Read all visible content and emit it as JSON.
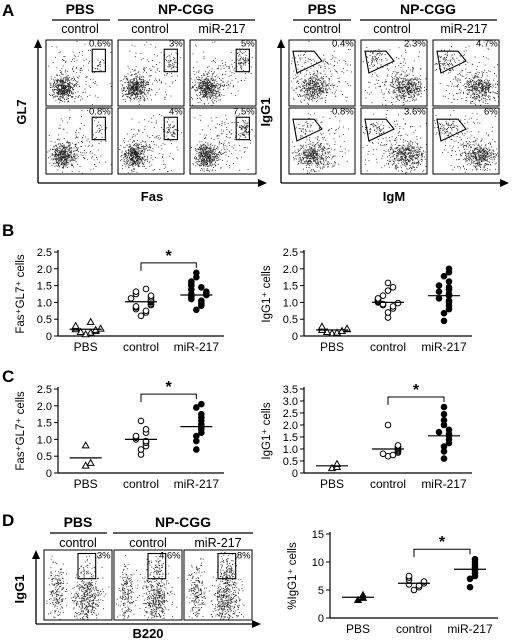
{
  "panels": [
    "A",
    "B",
    "C",
    "D"
  ],
  "flow_A": {
    "group_pbs": "PBS",
    "group_np": "NP-CGG",
    "sub_control": "control",
    "sub_mir": "miR-217",
    "left_xlabel": "Fas",
    "left_ylabel": "GL7",
    "right_xlabel": "IgM",
    "right_ylabel": "IgG1",
    "left_pct": [
      [
        "0.6%",
        "3%",
        "5%"
      ],
      [
        "0.8%",
        "4%",
        "7.5%"
      ]
    ],
    "right_pct": [
      [
        "0.4%",
        "2.3%",
        "4.7%"
      ],
      [
        "0.8%",
        "3.6%",
        "6%"
      ]
    ]
  },
  "flow_D": {
    "group_pbs": "PBS",
    "group_np": "NP-CGG",
    "sub": [
      "control",
      "control",
      "miR-217"
    ],
    "pct": [
      "3%",
      "4.6%",
      "8%"
    ],
    "xlabel": "B220",
    "ylabel": "IgG1"
  },
  "chart_data": [
    {
      "type": "scatter",
      "panel": "B",
      "ylabel": "Fas⁺GL7⁺ cells",
      "categories": [
        "PBS",
        "control",
        "miR-217"
      ],
      "ylim": [
        0,
        2.5
      ],
      "yticks": [
        "0",
        "0.5",
        "1.0",
        "1.5",
        "2.0",
        "2.5"
      ],
      "markers": [
        "triangle-open",
        "circle-open",
        "circle-filled"
      ],
      "series": [
        {
          "values": [
            0.05,
            0.1,
            0.12,
            0.15,
            0.18,
            0.2,
            0.22,
            0.25,
            0.3,
            0.42
          ]
        },
        {
          "values": [
            0.6,
            0.7,
            0.75,
            0.8,
            0.85,
            0.88,
            0.92,
            0.95,
            1.0,
            1.02,
            1.05,
            1.08,
            1.12,
            1.15,
            1.2,
            1.25,
            1.32,
            1.4
          ]
        },
        {
          "values": [
            0.78,
            0.9,
            0.98,
            1.05,
            1.1,
            1.12,
            1.18,
            1.22,
            1.25,
            1.28,
            1.32,
            1.38,
            1.45,
            1.5,
            1.55,
            1.62,
            1.75,
            1.88
          ]
        }
      ],
      "means": [
        0.2,
        1.02,
        1.22
      ],
      "significance": {
        "between": [
          1,
          2
        ],
        "label": "*"
      }
    },
    {
      "type": "scatter",
      "panel": "B",
      "ylabel": "IgG1⁺ cells",
      "categories": [
        "PBS",
        "control",
        "miR-217"
      ],
      "ylim": [
        0,
        2.5
      ],
      "yticks": [
        "0",
        "0.5",
        "1.0",
        "1.5",
        "2.0",
        "2.5"
      ],
      "markers": [
        "triangle-open",
        "circle-open",
        "circle-filled"
      ],
      "series": [
        {
          "values": [
            0.08,
            0.1,
            0.12,
            0.15,
            0.18,
            0.2,
            0.22,
            0.25,
            0.28
          ]
        },
        {
          "values": [
            0.55,
            0.7,
            0.82,
            0.88,
            0.92,
            0.95,
            0.98,
            1.0,
            1.02,
            1.05,
            1.08,
            1.12,
            1.2,
            1.35,
            1.45,
            1.58
          ]
        },
        {
          "values": [
            0.45,
            0.68,
            0.8,
            0.9,
            1.0,
            1.05,
            1.12,
            1.2,
            1.25,
            1.32,
            1.38,
            1.45,
            1.5,
            1.62,
            1.78,
            1.9,
            2.0
          ]
        }
      ],
      "means": [
        0.18,
        1.0,
        1.2
      ]
    },
    {
      "type": "scatter",
      "panel": "C",
      "ylabel": "Fas⁺GL7⁺ cells",
      "categories": [
        "PBS",
        "control",
        "miR-217"
      ],
      "ylim": [
        0,
        2.5
      ],
      "yticks": [
        "0",
        "0.5",
        "1.0",
        "1.5",
        "2.0",
        "2.5"
      ],
      "markers": [
        "triangle-open",
        "circle-open",
        "circle-filled"
      ],
      "series": [
        {
          "values": [
            0.22,
            0.3,
            0.82
          ]
        },
        {
          "values": [
            0.55,
            0.7,
            0.8,
            0.9,
            0.95,
            1.0,
            1.05,
            1.1,
            1.2,
            1.3,
            1.55
          ]
        },
        {
          "values": [
            0.7,
            0.95,
            1.1,
            1.2,
            1.3,
            1.38,
            1.45,
            1.55,
            1.65,
            1.75,
            1.95,
            2.05
          ]
        }
      ],
      "means": [
        0.45,
        1.0,
        1.38
      ],
      "significance": {
        "between": [
          1,
          2
        ],
        "label": "*"
      }
    },
    {
      "type": "scatter",
      "panel": "C",
      "ylabel": "IgG1⁺ cells",
      "categories": [
        "PBS",
        "control",
        "miR-217"
      ],
      "ylim": [
        0,
        3.5
      ],
      "yticks": [
        "0",
        "0.5",
        "1.0",
        "1.5",
        "2.0",
        "2.5",
        "3.0",
        "3.5"
      ],
      "markers": [
        "triangle-open",
        "circle-open",
        "circle-filled"
      ],
      "series": [
        {
          "values": [
            0.2,
            0.25,
            0.38
          ]
        },
        {
          "values": [
            0.7,
            0.75,
            0.8,
            0.85,
            0.9,
            0.95,
            1.0,
            1.05,
            1.1,
            1.15,
            2.0
          ]
        },
        {
          "values": [
            0.6,
            0.9,
            1.1,
            1.25,
            1.4,
            1.55,
            1.62,
            1.7,
            1.8,
            2.0,
            2.2,
            2.45,
            2.75
          ]
        }
      ],
      "means": [
        0.3,
        1.0,
        1.55
      ],
      "significance": {
        "between": [
          1,
          2
        ],
        "label": "*"
      }
    },
    {
      "type": "scatter",
      "panel": "D",
      "ylabel": "%IgG1⁺ cells",
      "categories": [
        "PBS",
        "control",
        "miR-217"
      ],
      "ylim": [
        0,
        15
      ],
      "yticks": [
        "0",
        "5",
        "10",
        "15"
      ],
      "markers": [
        "triangle-filled",
        "circle-open",
        "circle-filled"
      ],
      "series": [
        {
          "values": [
            3.2,
            3.6,
            4.1
          ]
        },
        {
          "values": [
            5.0,
            5.5,
            5.8,
            6.0,
            6.2,
            6.5,
            6.8,
            7.2,
            7.5
          ]
        },
        {
          "values": [
            5.5,
            7.0,
            7.5,
            8.0,
            8.5,
            9.0,
            9.5,
            10.0,
            10.5
          ]
        }
      ],
      "means": [
        3.7,
        6.2,
        8.7
      ],
      "significance": {
        "between": [
          1,
          2
        ],
        "label": "*"
      }
    }
  ]
}
